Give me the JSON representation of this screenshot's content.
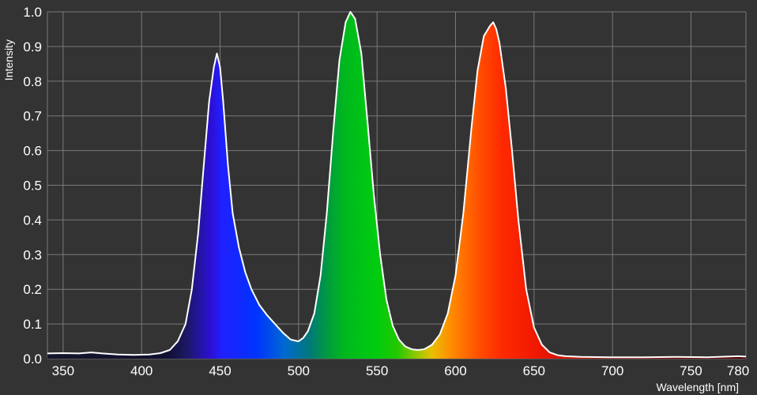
{
  "chart_data": {
    "type": "area",
    "title": "",
    "xlabel": "Wavelength [nm]",
    "ylabel": "Intensity",
    "xlim": [
      340,
      785
    ],
    "ylim": [
      0,
      1.0
    ],
    "x_ticks": [
      350,
      400,
      450,
      500,
      550,
      600,
      650,
      700,
      750,
      780
    ],
    "y_ticks": [
      "0.0",
      "0.1",
      "0.2",
      "0.3",
      "0.4",
      "0.5",
      "0.6",
      "0.7",
      "0.8",
      "0.9",
      "1.0"
    ],
    "grid": true,
    "legend": "none",
    "colors": {
      "background": "#333333",
      "plot_background": "#333333",
      "grid": "#7a7a7a",
      "curve": "#ffffff"
    },
    "series": [
      {
        "x": [
          340,
          350,
          360,
          368,
          375,
          385,
          395,
          405,
          412,
          418,
          423,
          428,
          432,
          436,
          440,
          443,
          446,
          448,
          450,
          452,
          455,
          458,
          462,
          466,
          470,
          475,
          480,
          485,
          490,
          495,
          500,
          503,
          506,
          510,
          514,
          518,
          522,
          526,
          530,
          533,
          536,
          540,
          544,
          548,
          552,
          556,
          560,
          564,
          568,
          572,
          576,
          580,
          585,
          590,
          595,
          600,
          605,
          610,
          614,
          618,
          622,
          624,
          626,
          628,
          632,
          636,
          640,
          645,
          650,
          655,
          660,
          665,
          670,
          680,
          700,
          720,
          740,
          760,
          780,
          785
        ],
        "y": [
          0.015,
          0.016,
          0.015,
          0.018,
          0.015,
          0.012,
          0.011,
          0.012,
          0.016,
          0.025,
          0.05,
          0.1,
          0.2,
          0.36,
          0.58,
          0.74,
          0.84,
          0.88,
          0.84,
          0.74,
          0.56,
          0.42,
          0.32,
          0.25,
          0.2,
          0.155,
          0.125,
          0.1,
          0.075,
          0.055,
          0.05,
          0.06,
          0.08,
          0.13,
          0.24,
          0.42,
          0.65,
          0.86,
          0.97,
          1.0,
          0.98,
          0.88,
          0.68,
          0.47,
          0.3,
          0.17,
          0.095,
          0.055,
          0.035,
          0.027,
          0.025,
          0.027,
          0.04,
          0.07,
          0.13,
          0.24,
          0.42,
          0.66,
          0.83,
          0.93,
          0.96,
          0.97,
          0.95,
          0.91,
          0.78,
          0.6,
          0.4,
          0.2,
          0.09,
          0.04,
          0.018,
          0.01,
          0.007,
          0.005,
          0.004,
          0.004,
          0.005,
          0.004,
          0.007,
          0.006
        ]
      }
    ]
  }
}
